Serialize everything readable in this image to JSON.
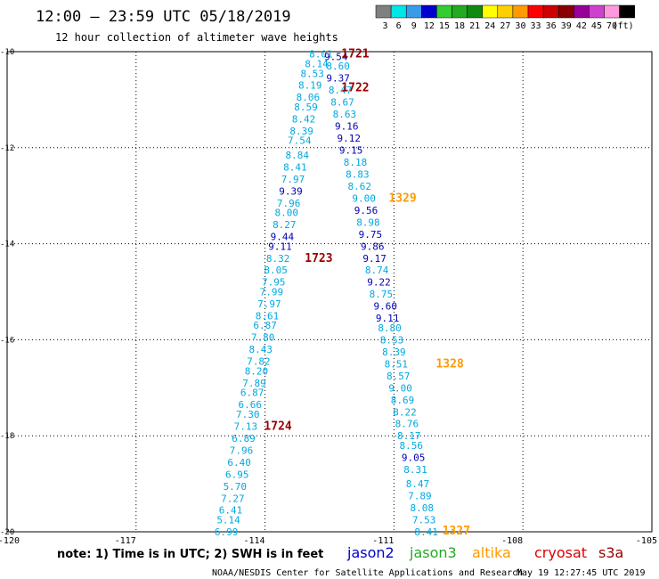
{
  "header": {
    "title": "12:00 – 23:59 UTC 05/18/2019",
    "subtitle": "12 hour collection of altimeter wave heights"
  },
  "legend_scale": {
    "unit": "(ft)",
    "swatches": [
      {
        "color": "#808080",
        "label": "3"
      },
      {
        "color": "#00e5e5",
        "label": "6"
      },
      {
        "color": "#3a9be8",
        "label": "9"
      },
      {
        "color": "#0000d0",
        "label": "12"
      },
      {
        "color": "#33cc33",
        "label": "15"
      },
      {
        "color": "#22aa22",
        "label": "18"
      },
      {
        "color": "#0e8a0e",
        "label": "21"
      },
      {
        "color": "#ffff00",
        "label": "24"
      },
      {
        "color": "#ffd000",
        "label": "27"
      },
      {
        "color": "#ff9a00",
        "label": "30"
      },
      {
        "color": "#ff0000",
        "label": "33"
      },
      {
        "color": "#cc0000",
        "label": "36"
      },
      {
        "color": "#880000",
        "label": "39"
      },
      {
        "color": "#990099",
        "label": "42"
      },
      {
        "color": "#d040d0",
        "label": "45"
      },
      {
        "color": "#ff99dd",
        "label": "70"
      },
      {
        "color": "#000000",
        "label": ""
      }
    ]
  },
  "footer": {
    "note": "note: 1) Time is in UTC; 2) SWH is in feet",
    "satellites": [
      {
        "name": "jason2",
        "color": "#0000cc"
      },
      {
        "name": "jason3",
        "color": "#22aa22"
      },
      {
        "name": "altika",
        "color": "#ff9a00"
      },
      {
        "name": "cryosat",
        "color": "#dd0000"
      },
      {
        "name": "s3a",
        "color": "#990000"
      }
    ],
    "credit": "NOAA/NESDIS Center for Satellite Applications and Research",
    "timestamp": "May 19 12:27:45 UTC 2019"
  },
  "chart_data": {
    "type": "scatter",
    "x_ticks": [
      "-120",
      "-117",
      "-114",
      "-111",
      "-108",
      "-105"
    ],
    "y_ticks": [
      "-10",
      "-12",
      "-14",
      "-16",
      "-18",
      "-20"
    ],
    "xlim": [
      -120,
      -105
    ],
    "ylim": [
      -20,
      -10
    ],
    "grid": "dotted",
    "series": [
      {
        "color": "#00a8e0",
        "points": [
          {
            "lon": -112.7,
            "lat": -10.05,
            "v": "8.01"
          },
          {
            "lon": -112.8,
            "lat": -10.25,
            "v": "8.14"
          },
          {
            "lon": -112.9,
            "lat": -10.45,
            "v": "8.53"
          },
          {
            "lon": -112.95,
            "lat": -10.7,
            "v": "8.19"
          },
          {
            "lon": -113.0,
            "lat": -10.95,
            "v": "8.06"
          },
          {
            "lon": -113.05,
            "lat": -11.15,
            "v": "8.59"
          },
          {
            "lon": -113.1,
            "lat": -11.4,
            "v": "8.42"
          },
          {
            "lon": -113.15,
            "lat": -11.65,
            "v": "8.39"
          },
          {
            "lon": -113.2,
            "lat": -11.85,
            "v": "7.54"
          },
          {
            "lon": -113.25,
            "lat": -12.15,
            "v": "8.84"
          },
          {
            "lon": -113.3,
            "lat": -12.4,
            "v": "8.41"
          },
          {
            "lon": -113.35,
            "lat": -12.65,
            "v": "7.97"
          },
          {
            "lon": -113.45,
            "lat": -13.15,
            "v": "7.96"
          },
          {
            "lon": -113.5,
            "lat": -13.35,
            "v": "8.00"
          },
          {
            "lon": -113.55,
            "lat": -13.6,
            "v": "8.27"
          },
          {
            "lon": -113.7,
            "lat": -14.3,
            "v": "8.32"
          },
          {
            "lon": -113.75,
            "lat": -14.55,
            "v": "8.05"
          },
          {
            "lon": -113.8,
            "lat": -14.8,
            "v": "7.95"
          },
          {
            "lon": -113.85,
            "lat": -15.0,
            "v": "7.99"
          },
          {
            "lon": -113.9,
            "lat": -15.25,
            "v": "7.97"
          },
          {
            "lon": -113.95,
            "lat": -15.5,
            "v": "8.61"
          },
          {
            "lon": -114.0,
            "lat": -15.7,
            "v": "6.87"
          },
          {
            "lon": -114.05,
            "lat": -15.95,
            "v": "7.80"
          },
          {
            "lon": -114.1,
            "lat": -16.2,
            "v": "8.43"
          },
          {
            "lon": -114.15,
            "lat": -16.45,
            "v": "7.82"
          },
          {
            "lon": -114.2,
            "lat": -16.65,
            "v": "8.20"
          },
          {
            "lon": -114.25,
            "lat": -16.9,
            "v": "7.89"
          },
          {
            "lon": -114.3,
            "lat": -17.1,
            "v": "6.87"
          },
          {
            "lon": -114.35,
            "lat": -17.35,
            "v": "6.66"
          },
          {
            "lon": -114.4,
            "lat": -17.55,
            "v": "7.30"
          },
          {
            "lon": -114.45,
            "lat": -17.8,
            "v": "7.13"
          },
          {
            "lon": -114.5,
            "lat": -18.05,
            "v": "6.89"
          },
          {
            "lon": -114.55,
            "lat": -18.3,
            "v": "7.96"
          },
          {
            "lon": -114.6,
            "lat": -18.55,
            "v": "6.40"
          },
          {
            "lon": -114.65,
            "lat": -18.8,
            "v": "6.95"
          },
          {
            "lon": -114.7,
            "lat": -19.05,
            "v": "5.70"
          },
          {
            "lon": -114.75,
            "lat": -19.3,
            "v": "7.27"
          },
          {
            "lon": -114.8,
            "lat": -19.55,
            "v": "6.41"
          },
          {
            "lon": -114.85,
            "lat": -19.75,
            "v": "5.14"
          },
          {
            "lon": -114.9,
            "lat": -20.0,
            "v": "6.99"
          },
          {
            "lon": -112.3,
            "lat": -10.3,
            "v": "8.60"
          },
          {
            "lon": -112.25,
            "lat": -10.8,
            "v": "8.47"
          },
          {
            "lon": -112.2,
            "lat": -11.05,
            "v": "8.67"
          },
          {
            "lon": -112.15,
            "lat": -11.3,
            "v": "8.63"
          },
          {
            "lon": -111.9,
            "lat": -12.3,
            "v": "8.18"
          },
          {
            "lon": -111.85,
            "lat": -12.55,
            "v": "8.83"
          },
          {
            "lon": -111.8,
            "lat": -12.8,
            "v": "8.62"
          },
          {
            "lon": -111.7,
            "lat": -13.05,
            "v": "9.00"
          },
          {
            "lon": -111.6,
            "lat": -13.55,
            "v": "8.98"
          },
          {
            "lon": -111.4,
            "lat": -14.55,
            "v": "8.74"
          },
          {
            "lon": -111.3,
            "lat": -15.05,
            "v": "8.75"
          },
          {
            "lon": -111.1,
            "lat": -15.75,
            "v": "8.80"
          },
          {
            "lon": -111.05,
            "lat": -16.0,
            "v": "8.53"
          },
          {
            "lon": -111.0,
            "lat": -16.25,
            "v": "8.39"
          },
          {
            "lon": -110.95,
            "lat": -16.5,
            "v": "8.51"
          },
          {
            "lon": -110.9,
            "lat": -16.75,
            "v": "8.57"
          },
          {
            "lon": -110.85,
            "lat": -17.0,
            "v": "9.00"
          },
          {
            "lon": -110.8,
            "lat": -17.25,
            "v": "8.69"
          },
          {
            "lon": -110.75,
            "lat": -17.5,
            "v": "8.22"
          },
          {
            "lon": -110.7,
            "lat": -17.75,
            "v": "8.76"
          },
          {
            "lon": -110.65,
            "lat": -18.0,
            "v": "8.17"
          },
          {
            "lon": -110.6,
            "lat": -18.2,
            "v": "8.56"
          },
          {
            "lon": -110.5,
            "lat": -18.7,
            "v": "8.31"
          },
          {
            "lon": -110.45,
            "lat": -19.0,
            "v": "8.47"
          },
          {
            "lon": -110.4,
            "lat": -19.25,
            "v": "7.89"
          },
          {
            "lon": -110.35,
            "lat": -19.5,
            "v": "8.08"
          },
          {
            "lon": -110.3,
            "lat": -19.75,
            "v": "7.53"
          },
          {
            "lon": -110.25,
            "lat": -20.0,
            "v": "8.41"
          }
        ]
      },
      {
        "color": "#0000b0",
        "points": [
          {
            "lon": -112.35,
            "lat": -10.1,
            "v": "9.54"
          },
          {
            "lon": -112.3,
            "lat": -10.55,
            "v": "9.37"
          },
          {
            "lon": -112.1,
            "lat": -11.55,
            "v": "9.16"
          },
          {
            "lon": -112.05,
            "lat": -11.8,
            "v": "9.12"
          },
          {
            "lon": -112.0,
            "lat": -12.05,
            "v": "9.15"
          },
          {
            "lon": -113.4,
            "lat": -12.9,
            "v": "9.39"
          },
          {
            "lon": -111.65,
            "lat": -13.3,
            "v": "9.56"
          },
          {
            "lon": -113.6,
            "lat": -13.85,
            "v": "9.44"
          },
          {
            "lon": -111.55,
            "lat": -13.8,
            "v": "9.75"
          },
          {
            "lon": -113.65,
            "lat": -14.05,
            "v": "9.11"
          },
          {
            "lon": -111.5,
            "lat": -14.05,
            "v": "9.86"
          },
          {
            "lon": -111.45,
            "lat": -14.3,
            "v": "9.17"
          },
          {
            "lon": -111.35,
            "lat": -14.8,
            "v": "9.22"
          },
          {
            "lon": -111.2,
            "lat": -15.3,
            "v": "9.60"
          },
          {
            "lon": -111.15,
            "lat": -15.55,
            "v": "9.11"
          },
          {
            "lon": -110.55,
            "lat": -18.45,
            "v": "9.05"
          }
        ]
      }
    ],
    "annotations": [
      {
        "lon": -111.9,
        "lat": -10.05,
        "text": "1721",
        "color": "#990000"
      },
      {
        "lon": -111.9,
        "lat": -10.75,
        "text": "1722",
        "color": "#990000"
      },
      {
        "lon": -110.8,
        "lat": -13.05,
        "text": "1329",
        "color": "#ff9a00"
      },
      {
        "lon": -112.75,
        "lat": -14.3,
        "text": "1723",
        "color": "#990000"
      },
      {
        "lon": -109.7,
        "lat": -16.5,
        "text": "1328",
        "color": "#ff9a00"
      },
      {
        "lon": -113.7,
        "lat": -17.8,
        "text": "1724",
        "color": "#990000"
      },
      {
        "lon": -109.55,
        "lat": -19.98,
        "text": "1327",
        "color": "#ff9a00"
      }
    ]
  }
}
